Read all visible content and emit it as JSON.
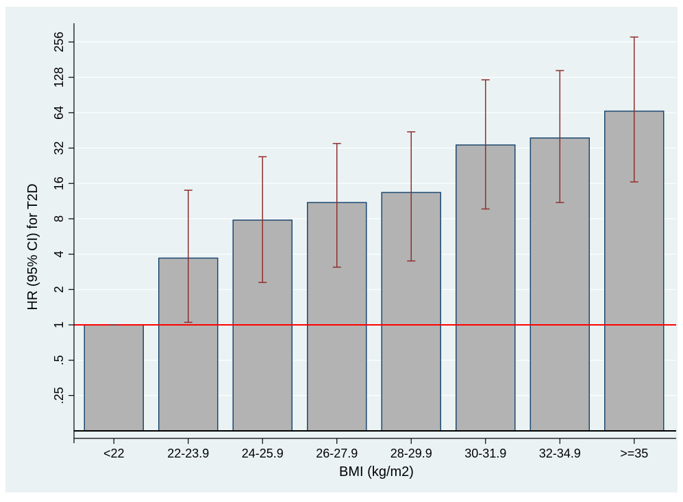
{
  "chart_data": {
    "type": "bar",
    "title": "",
    "xlabel": "BMI (kg/m2)",
    "ylabel": "HR (95% CI) for T2D",
    "y_scale": "log2",
    "ylim": [
      0.125,
      400
    ],
    "y_ticks": [
      0.25,
      0.5,
      1,
      2,
      4,
      8,
      16,
      32,
      64,
      128,
      256
    ],
    "y_tick_labels": [
      ".25",
      ".5",
      "1",
      "2",
      "4",
      "8",
      "16",
      "32",
      "64",
      "128",
      "256"
    ],
    "categories": [
      "<22",
      "22-23.9",
      "24-25.9",
      "26-27.9",
      "28-29.9",
      "30-31.9",
      "32-34.9",
      ">=35"
    ],
    "series": [
      {
        "values": [
          1,
          3.7,
          7.8,
          11,
          13.4,
          34,
          39,
          66
        ],
        "ci_lower": [
          1,
          1.05,
          2.3,
          3.1,
          3.5,
          9.7,
          11,
          16.5
        ],
        "ci_upper": [
          1,
          14,
          27,
          35,
          44,
          122,
          146,
          282
        ]
      }
    ],
    "reference_line": {
      "y": 1,
      "color": "#ff0000"
    },
    "grid": true,
    "legend": "none",
    "colors": {
      "bar_fill": "#b3b3b3",
      "bar_stroke": "#1a476f",
      "error_bar": "#902c2c",
      "grid": "#ffffff",
      "background": "#eaf2f3"
    }
  }
}
